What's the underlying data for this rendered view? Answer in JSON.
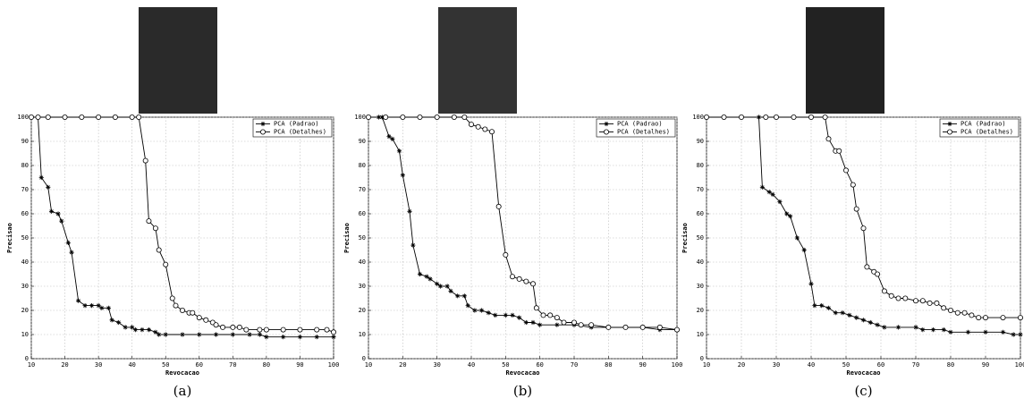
{
  "chart_data": [
    {
      "type": "line",
      "caption": "(a)",
      "xlabel": "Revocacao",
      "ylabel": "Precisao",
      "xlim": [
        10,
        100
      ],
      "ylim": [
        0,
        100
      ],
      "xticks": [
        10,
        20,
        30,
        40,
        50,
        60,
        70,
        80,
        90,
        100
      ],
      "yticks": [
        0,
        10,
        20,
        30,
        40,
        50,
        60,
        70,
        80,
        90,
        100
      ],
      "grid": true,
      "legend": "upper right",
      "series": [
        {
          "name": "PCA (Padrao)",
          "color": "#000000",
          "marker": "star",
          "x": [
            10,
            12,
            13,
            15,
            16,
            18,
            19,
            21,
            22,
            24,
            26,
            28,
            30,
            31,
            33,
            34,
            36,
            38,
            40,
            41,
            43,
            45,
            47,
            48,
            50,
            55,
            60,
            65,
            70,
            75,
            78,
            80,
            85,
            90,
            95,
            100
          ],
          "values": [
            100,
            100,
            75,
            71,
            61,
            60,
            57,
            48,
            44,
            24,
            22,
            22,
            22,
            21,
            21,
            16,
            15,
            13,
            13,
            12,
            12,
            12,
            11,
            10,
            10,
            10,
            10,
            10,
            10,
            10,
            10,
            9,
            9,
            9,
            9,
            9
          ]
        },
        {
          "name": "PCA (Detalhes)",
          "color": "#000000",
          "marker": "circle",
          "x": [
            10,
            12,
            15,
            20,
            25,
            30,
            35,
            40,
            42,
            44,
            45,
            47,
            48,
            50,
            52,
            53,
            55,
            57,
            58,
            60,
            62,
            64,
            65,
            67,
            70,
            72,
            74,
            78,
            80,
            85,
            90,
            95,
            98,
            100
          ],
          "values": [
            100,
            100,
            100,
            100,
            100,
            100,
            100,
            100,
            100,
            82,
            57,
            54,
            45,
            39,
            25,
            22,
            20,
            19,
            19,
            17,
            16,
            15,
            14,
            13,
            13,
            13,
            12,
            12,
            12,
            12,
            12,
            12,
            12,
            11
          ]
        }
      ]
    },
    {
      "type": "line",
      "caption": "(b)",
      "xlabel": "Revocacao",
      "ylabel": "Precisao",
      "xlim": [
        10,
        100
      ],
      "ylim": [
        0,
        100
      ],
      "xticks": [
        10,
        20,
        30,
        40,
        50,
        60,
        70,
        80,
        90,
        100
      ],
      "yticks": [
        0,
        10,
        20,
        30,
        40,
        50,
        60,
        70,
        80,
        90,
        100
      ],
      "grid": true,
      "legend": "upper right",
      "series": [
        {
          "name": "PCA (Padrao)",
          "color": "#000000",
          "marker": "star",
          "x": [
            10,
            13,
            14,
            16,
            17,
            19,
            20,
            22,
            23,
            25,
            27,
            28,
            30,
            31,
            33,
            34,
            36,
            38,
            39,
            41,
            43,
            45,
            47,
            50,
            52,
            54,
            56,
            58,
            60,
            65,
            70,
            75,
            80,
            85,
            90,
            95,
            100
          ],
          "values": [
            100,
            100,
            100,
            92,
            91,
            86,
            76,
            61,
            47,
            35,
            34,
            33,
            31,
            30,
            30,
            28,
            26,
            26,
            22,
            20,
            20,
            19,
            18,
            18,
            18,
            17,
            15,
            15,
            14,
            14,
            14,
            13,
            13,
            13,
            13,
            12,
            12
          ]
        },
        {
          "name": "PCA (Detalhes)",
          "color": "#000000",
          "marker": "circle",
          "x": [
            10,
            15,
            20,
            25,
            30,
            35,
            38,
            40,
            42,
            44,
            46,
            48,
            50,
            52,
            54,
            56,
            58,
            59,
            61,
            63,
            65,
            67,
            70,
            72,
            75,
            80,
            85,
            90,
            95,
            100
          ],
          "values": [
            100,
            100,
            100,
            100,
            100,
            100,
            100,
            97,
            96,
            95,
            94,
            63,
            43,
            34,
            33,
            32,
            31,
            21,
            18,
            18,
            17,
            15,
            15,
            14,
            14,
            13,
            13,
            13,
            13,
            12
          ]
        }
      ]
    },
    {
      "type": "line",
      "caption": "(c)",
      "xlabel": "Revocacao",
      "ylabel": "Precisao",
      "xlim": [
        10,
        100
      ],
      "ylim": [
        0,
        100
      ],
      "xticks": [
        10,
        20,
        30,
        40,
        50,
        60,
        70,
        80,
        90,
        100
      ],
      "yticks": [
        0,
        10,
        20,
        30,
        40,
        50,
        60,
        70,
        80,
        90,
        100
      ],
      "grid": true,
      "legend": "upper right",
      "series": [
        {
          "name": "PCA (Padrao)",
          "color": "#000000",
          "marker": "star",
          "x": [
            10,
            15,
            20,
            25,
            26,
            28,
            29,
            31,
            33,
            34,
            36,
            38,
            40,
            41,
            43,
            45,
            47,
            49,
            51,
            53,
            55,
            57,
            59,
            61,
            65,
            70,
            72,
            75,
            78,
            80,
            85,
            90,
            95,
            98,
            100
          ],
          "values": [
            100,
            100,
            100,
            100,
            71,
            69,
            68,
            65,
            60,
            59,
            50,
            45,
            31,
            22,
            22,
            21,
            19,
            19,
            18,
            17,
            16,
            15,
            14,
            13,
            13,
            13,
            12,
            12,
            12,
            11,
            11,
            11,
            11,
            10,
            10
          ]
        },
        {
          "name": "PCA (Detalhes)",
          "color": "#000000",
          "marker": "circle",
          "x": [
            10,
            15,
            20,
            27,
            30,
            35,
            40,
            44,
            45,
            47,
            48,
            50,
            52,
            53,
            55,
            56,
            58,
            59,
            61,
            63,
            65,
            67,
            70,
            72,
            74,
            76,
            78,
            80,
            82,
            84,
            86,
            88,
            90,
            95,
            100
          ],
          "values": [
            100,
            100,
            100,
            100,
            100,
            100,
            100,
            100,
            91,
            86,
            86,
            78,
            72,
            62,
            54,
            38,
            36,
            35,
            28,
            26,
            25,
            25,
            24,
            24,
            23,
            23,
            21,
            20,
            19,
            19,
            18,
            17,
            17,
            17,
            17
          ]
        }
      ]
    }
  ]
}
